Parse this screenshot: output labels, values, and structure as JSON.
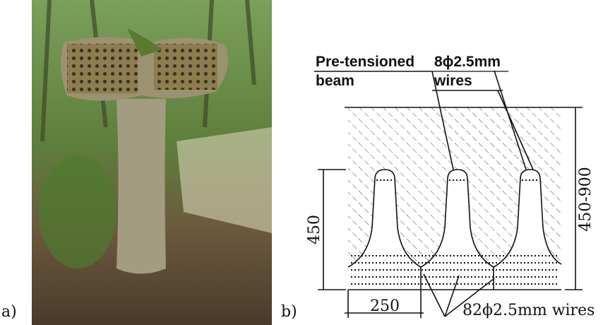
{
  "panel_a": {
    "label": "a)"
  },
  "panel_b": {
    "label": "b)",
    "beam_label": [
      "Pre-tensioned",
      "beam"
    ],
    "wire_label": [
      "8ϕ2.5mm",
      "wires"
    ],
    "bottom_wire_label": "82ϕ2.5mm wires",
    "dim_height": "450",
    "dim_total": "450-900",
    "dim_width": "250"
  }
}
